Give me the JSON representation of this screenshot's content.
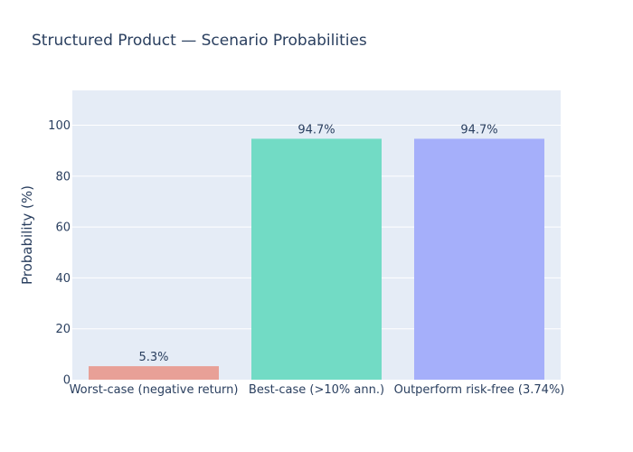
{
  "chart_data": {
    "type": "bar",
    "title": "Structured Product — Scenario Probabilities",
    "xlabel": "",
    "ylabel": "Probability (%)",
    "ylim": [
      0,
      113.7
    ],
    "yticks": [
      0,
      20,
      40,
      60,
      80,
      100
    ],
    "grid": true,
    "legend": "none",
    "categories": [
      "Worst-case (negative return)",
      "Best-case (>10% ann.)",
      "Outperform risk-free (3.74%)"
    ],
    "values": [
      5.3,
      94.7,
      94.7
    ],
    "data_labels": [
      "5.3%",
      "94.7%",
      "94.7%"
    ],
    "colors": [
      "#e8a097",
      "#72dbc5",
      "#a5affa"
    ],
    "background_color": "#e5ecf6"
  }
}
